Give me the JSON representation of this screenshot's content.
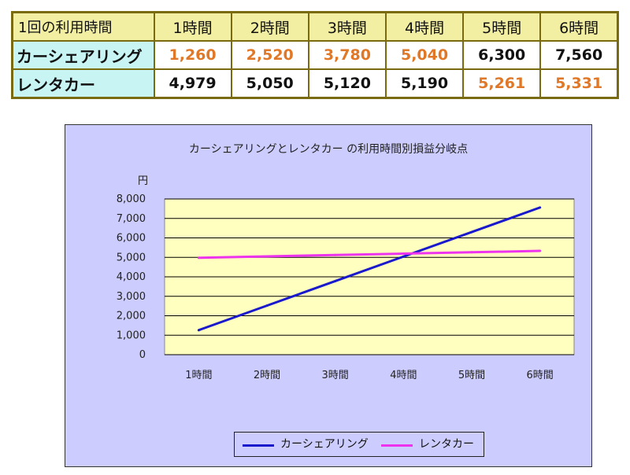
{
  "table": {
    "corner": "1回の利用時間",
    "headers": [
      "1時間",
      "2時間",
      "3時間",
      "4時間",
      "5時間",
      "6時間"
    ],
    "rows": [
      {
        "label": "カーシェアリング",
        "cells": [
          "1,260",
          "2,520",
          "3,780",
          "5,040",
          "6,300",
          "7,560"
        ],
        "highlight": [
          true,
          true,
          true,
          true,
          false,
          false
        ]
      },
      {
        "label": "レンタカー",
        "cells": [
          "4,979",
          "5,050",
          "5,120",
          "5,190",
          "5,261",
          "5,331"
        ],
        "highlight": [
          false,
          false,
          false,
          false,
          true,
          true
        ]
      }
    ],
    "colors": {
      "header_bg": "#f2efa2",
      "label_bg": "#c8f4f4",
      "highlight_text": "#e07828",
      "border": "#7a6a10"
    }
  },
  "chart_data": {
    "type": "line",
    "title": "カーシェアリングとレンタカー の利用時間別損益分岐点",
    "ylabel": "円",
    "xlabel": "",
    "categories": [
      "1時間",
      "2時間",
      "3時間",
      "4時間",
      "5時間",
      "6時間"
    ],
    "series": [
      {
        "name": "カーシェアリング",
        "color": "#1a1acc",
        "values": [
          1260,
          2520,
          3780,
          5040,
          6300,
          7560
        ]
      },
      {
        "name": "レンタカー",
        "color": "#ee33ee",
        "values": [
          4979,
          5050,
          5120,
          5190,
          5261,
          5331
        ]
      }
    ],
    "ylim": [
      0,
      8000
    ],
    "yticks": [
      0,
      1000,
      2000,
      3000,
      4000,
      5000,
      6000,
      7000,
      8000
    ],
    "ytick_labels": [
      "0",
      "1,000",
      "2,000",
      "3,000",
      "4,000",
      "5,000",
      "6,000",
      "7,000",
      "8,000"
    ],
    "grid": true,
    "legend_position": "bottom",
    "colors": {
      "outer_bg": "#ccccff",
      "plot_bg": "#ffffc0"
    }
  }
}
